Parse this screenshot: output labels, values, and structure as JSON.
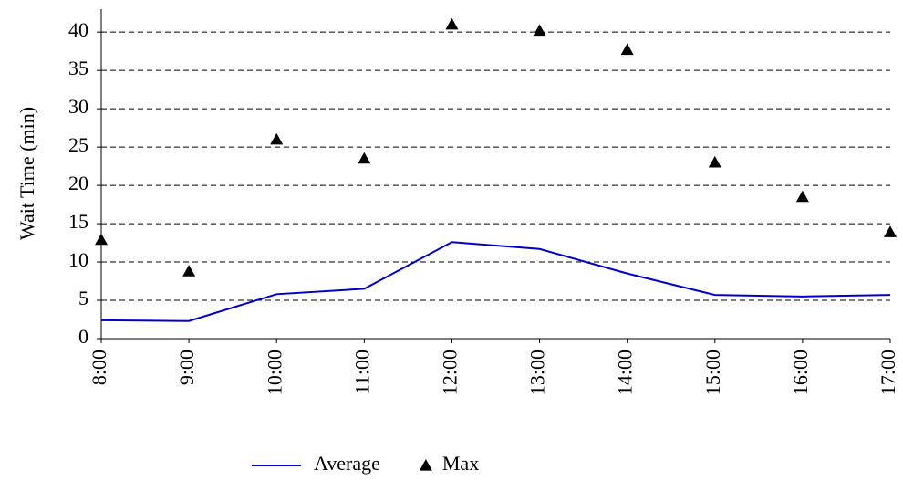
{
  "chart_data": {
    "type": "line",
    "y_label": "Wait Time (min)",
    "categories": [
      "8:00",
      "9:00",
      "10:00",
      "11:00",
      "12:00",
      "13:00",
      "14:00",
      "15:00",
      "16:00",
      "17:00"
    ],
    "series": [
      {
        "name": "Average",
        "color": "#0000cc",
        "marker": "none",
        "values": [
          2.4,
          2.3,
          5.8,
          6.5,
          12.6,
          11.7,
          8.5,
          5.7,
          5.5,
          5.7
        ]
      },
      {
        "name": "Max",
        "color": "#000000",
        "marker": "triangle",
        "line": false,
        "values": [
          12.9,
          8.8,
          26,
          23.5,
          41,
          40.2,
          37.7,
          23,
          18.5,
          13.9
        ]
      }
    ],
    "ylim": [
      0,
      43
    ],
    "yticks": [
      0,
      5,
      10,
      15,
      20,
      25,
      30,
      35,
      40
    ],
    "grid": true,
    "legend": "bottom"
  }
}
